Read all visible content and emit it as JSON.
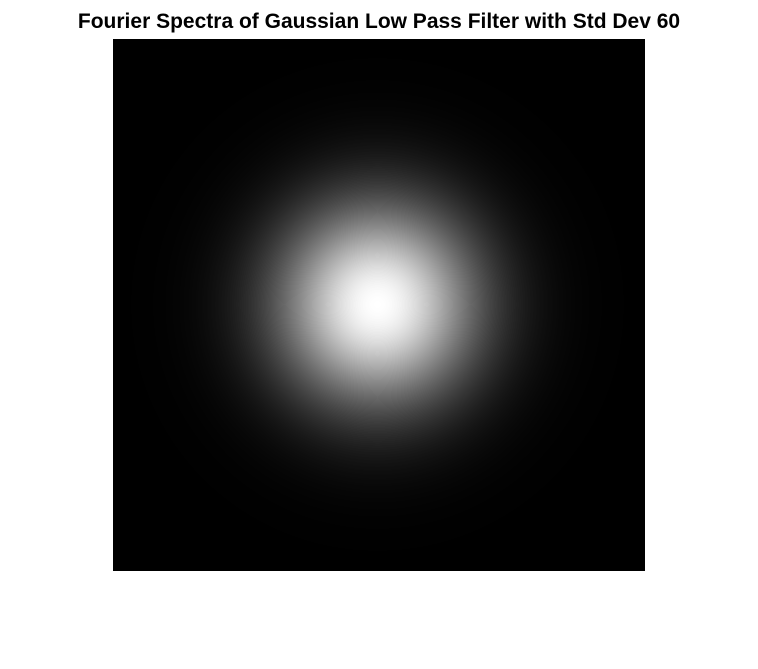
{
  "figure": {
    "title": "Fourier Spectra of Gaussian Low Pass Filter with Std Dev 60"
  },
  "image": {
    "description": "grayscale gaussian blob",
    "background_color": "#000000",
    "peak_color": "#ffffff",
    "std_dev": 60
  }
}
